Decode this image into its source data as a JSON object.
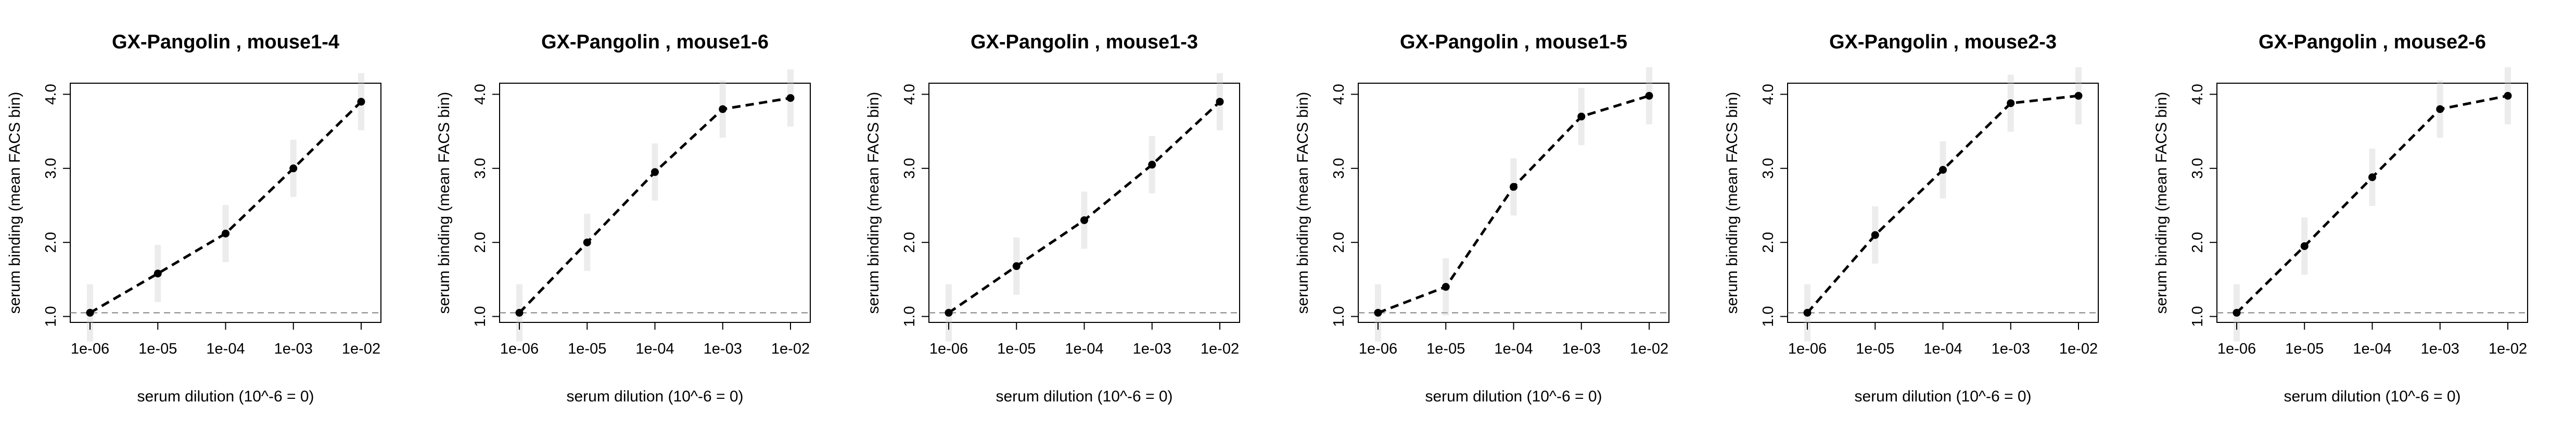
{
  "chart_data": [
    {
      "type": "line",
      "title": "GX-Pangolin , mouse1-4",
      "xlabel": "serum dilution (10^-6 = 0)",
      "ylabel": "serum binding (mean FACS bin)",
      "x_scale": "log10",
      "x": [
        1e-06,
        1e-05,
        0.0001,
        0.001,
        0.01
      ],
      "x_tick_labels": [
        "1e-06",
        "1e-05",
        "1e-04",
        "1e-03",
        "1e-02"
      ],
      "y_ticks": [
        "1.0",
        "2.0",
        "3.0",
        "4.0"
      ],
      "ylim": [
        0.92,
        4.15
      ],
      "reference_line": 1.05,
      "series": [
        {
          "values": [
            1.05,
            1.58,
            2.12,
            3.0,
            3.9
          ]
        }
      ]
    },
    {
      "type": "line",
      "title": "GX-Pangolin , mouse1-6",
      "xlabel": "serum dilution (10^-6 = 0)",
      "ylabel": "serum binding (mean FACS bin)",
      "x_scale": "log10",
      "x": [
        1e-06,
        1e-05,
        0.0001,
        0.001,
        0.01
      ],
      "x_tick_labels": [
        "1e-06",
        "1e-05",
        "1e-04",
        "1e-03",
        "1e-02"
      ],
      "y_ticks": [
        "1.0",
        "2.0",
        "3.0",
        "4.0"
      ],
      "ylim": [
        0.92,
        4.15
      ],
      "reference_line": 1.05,
      "series": [
        {
          "values": [
            1.05,
            2.0,
            2.95,
            3.8,
            3.95
          ]
        }
      ]
    },
    {
      "type": "line",
      "title": "GX-Pangolin , mouse1-3",
      "xlabel": "serum dilution (10^-6 = 0)",
      "ylabel": "serum binding (mean FACS bin)",
      "x_scale": "log10",
      "x": [
        1e-06,
        1e-05,
        0.0001,
        0.001,
        0.01
      ],
      "x_tick_labels": [
        "1e-06",
        "1e-05",
        "1e-04",
        "1e-03",
        "1e-02"
      ],
      "y_ticks": [
        "1.0",
        "2.0",
        "3.0",
        "4.0"
      ],
      "ylim": [
        0.92,
        4.15
      ],
      "reference_line": 1.05,
      "series": [
        {
          "values": [
            1.05,
            1.68,
            2.3,
            3.05,
            3.9
          ]
        }
      ]
    },
    {
      "type": "line",
      "title": "GX-Pangolin , mouse1-5",
      "xlabel": "serum dilution (10^-6 = 0)",
      "ylabel": "serum binding (mean FACS bin)",
      "x_scale": "log10",
      "x": [
        1e-06,
        1e-05,
        0.0001,
        0.001,
        0.01
      ],
      "x_tick_labels": [
        "1e-06",
        "1e-05",
        "1e-04",
        "1e-03",
        "1e-02"
      ],
      "y_ticks": [
        "1.0",
        "2.0",
        "3.0",
        "4.0"
      ],
      "ylim": [
        0.92,
        4.15
      ],
      "reference_line": 1.05,
      "series": [
        {
          "values": [
            1.05,
            1.4,
            2.75,
            3.7,
            3.98
          ]
        }
      ]
    },
    {
      "type": "line",
      "title": "GX-Pangolin , mouse2-3",
      "xlabel": "serum dilution (10^-6 = 0)",
      "ylabel": "serum binding (mean FACS bin)",
      "x_scale": "log10",
      "x": [
        1e-06,
        1e-05,
        0.0001,
        0.001,
        0.01
      ],
      "x_tick_labels": [
        "1e-06",
        "1e-05",
        "1e-04",
        "1e-03",
        "1e-02"
      ],
      "y_ticks": [
        "1.0",
        "2.0",
        "3.0",
        "4.0"
      ],
      "ylim": [
        0.92,
        4.15
      ],
      "reference_line": 1.05,
      "series": [
        {
          "values": [
            1.05,
            2.1,
            2.98,
            3.88,
            3.98
          ]
        }
      ]
    },
    {
      "type": "line",
      "title": "GX-Pangolin , mouse2-6",
      "xlabel": "serum dilution (10^-6 = 0)",
      "ylabel": "serum binding (mean FACS bin)",
      "x_scale": "log10",
      "x": [
        1e-06,
        1e-05,
        0.0001,
        0.001,
        0.01
      ],
      "x_tick_labels": [
        "1e-06",
        "1e-05",
        "1e-04",
        "1e-03",
        "1e-02"
      ],
      "y_ticks": [
        "1.0",
        "2.0",
        "3.0",
        "4.0"
      ],
      "ylim": [
        0.92,
        4.15
      ],
      "reference_line": 1.05,
      "series": [
        {
          "values": [
            1.05,
            1.95,
            2.88,
            3.8,
            3.98
          ]
        }
      ]
    }
  ],
  "colors": {
    "line": "#000000",
    "point": "#000000",
    "reference_line": "#808080",
    "replicate_smear": "#c8c8c8"
  }
}
